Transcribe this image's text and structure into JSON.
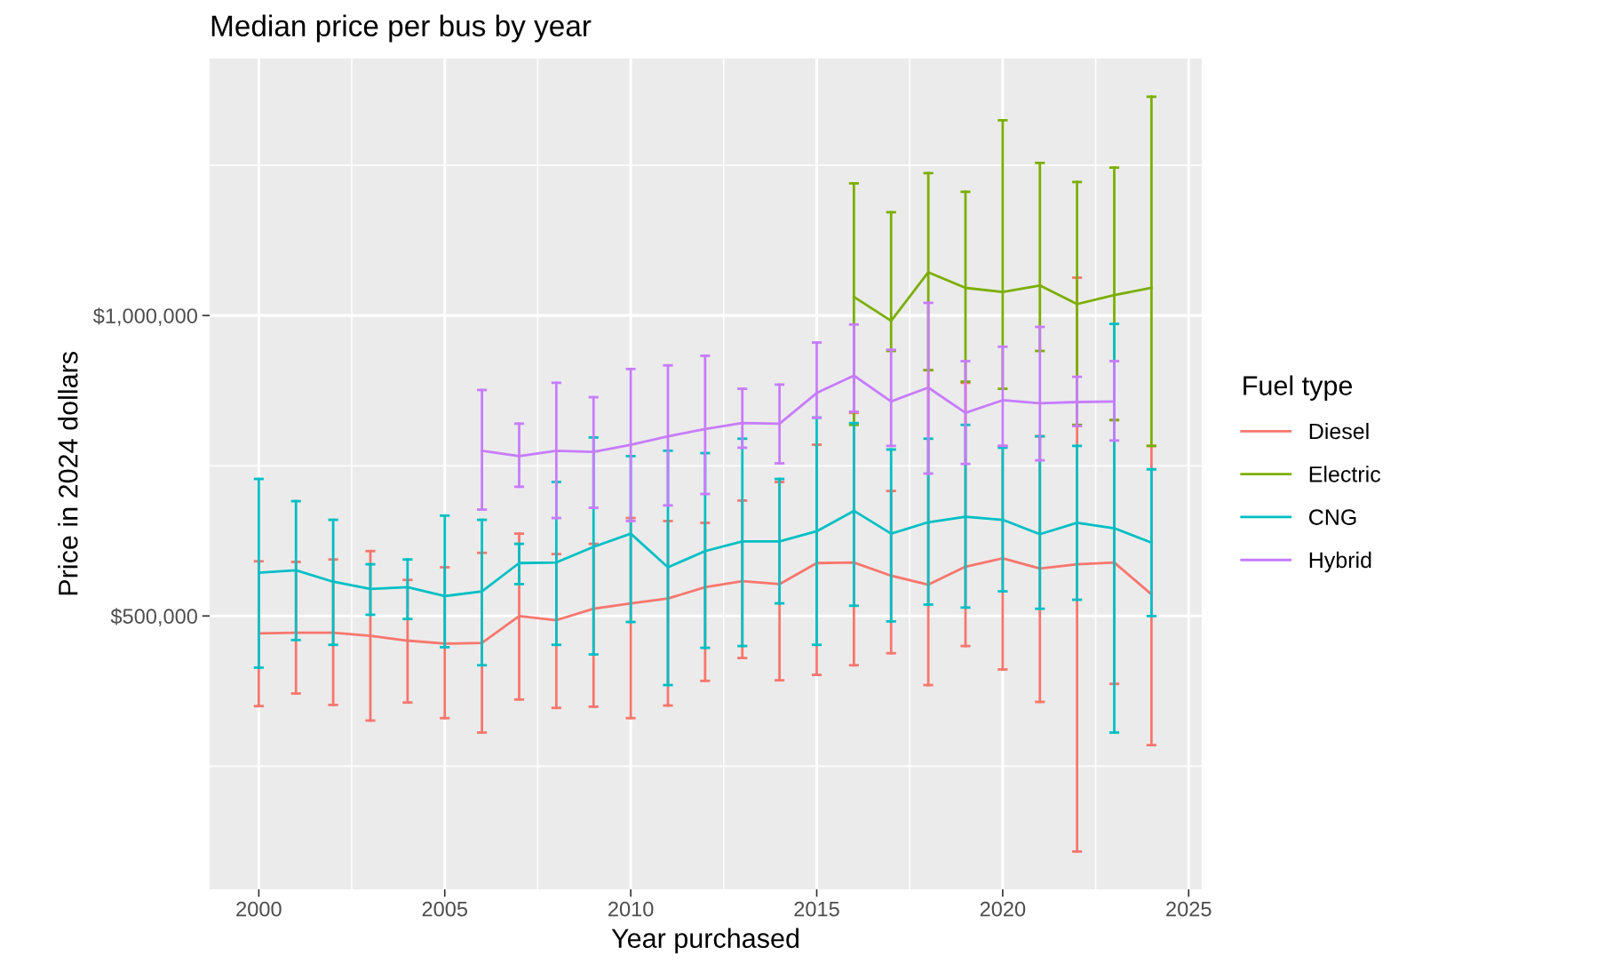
{
  "chart_data": {
    "type": "line",
    "title": "Median price per bus by year",
    "xlabel": "Year purchased",
    "ylabel": "Price in 2024 dollars",
    "legend_title": "Fuel type",
    "legend": "right",
    "grid": true,
    "xlim": [
      1998.68,
      2025.35
    ],
    "xticks": [
      {
        "value": 2000,
        "label": "2000"
      },
      {
        "value": 2002.5,
        "label": null
      },
      {
        "value": 2005,
        "label": "2005"
      },
      {
        "value": 2007.5,
        "label": null
      },
      {
        "value": 2010,
        "label": "2010"
      },
      {
        "value": 2012.5,
        "label": null
      },
      {
        "value": 2015,
        "label": "2015"
      },
      {
        "value": 2017.5,
        "label": null
      },
      {
        "value": 2020,
        "label": "2020"
      },
      {
        "value": 2022.5,
        "label": null
      },
      {
        "value": 2025,
        "label": "2025"
      }
    ],
    "ylim": [
      45000,
      1428000
    ],
    "yticks": [
      {
        "value": 250000,
        "label": null
      },
      {
        "value": 500000,
        "label": "$500,000"
      },
      {
        "value": 750000,
        "label": null
      },
      {
        "value": 1000000,
        "label": "$1,000,000"
      },
      {
        "value": 1250000,
        "label": null
      }
    ],
    "series": [
      {
        "name": "Diesel",
        "color": "#f8766d",
        "x": [
          2000,
          2001,
          2002,
          2003,
          2004,
          2005,
          2006,
          2007,
          2008,
          2009,
          2010,
          2011,
          2012,
          2013,
          2014,
          2015,
          2016,
          2017,
          2018,
          2019,
          2020,
          2021,
          2022,
          2023,
          2024
        ],
        "values": [
          471000,
          472000,
          472000,
          467000,
          459000,
          454000,
          455000,
          500000,
          493000,
          512000,
          521000,
          529000,
          548000,
          558000,
          553000,
          588000,
          589000,
          567000,
          552000,
          582000,
          596000,
          579000,
          586000,
          589000,
          536000
        ],
        "errors": [
          [
            350000,
            591000
          ],
          [
            371000,
            590000
          ],
          [
            352000,
            594000
          ],
          [
            326000,
            608000
          ],
          [
            356000,
            560000
          ],
          [
            330000,
            581000
          ],
          [
            306000,
            605000
          ],
          [
            361000,
            637000
          ],
          [
            347000,
            603000
          ],
          [
            349000,
            620000
          ],
          [
            330000,
            663000
          ],
          [
            351000,
            658000
          ],
          [
            392000,
            655000
          ],
          [
            430000,
            692000
          ],
          [
            393000,
            723000
          ],
          [
            402000,
            785000
          ],
          [
            418000,
            838000
          ],
          [
            438000,
            708000
          ],
          [
            385000,
            909000
          ],
          [
            450000,
            888000
          ],
          [
            411000,
            783000
          ],
          [
            357000,
            799000
          ],
          [
            108000,
            1063000
          ],
          [
            387000,
            826000
          ],
          [
            285000,
            783000
          ]
        ]
      },
      {
        "name": "Electric",
        "color": "#7cae00",
        "x": [
          2016,
          2017,
          2018,
          2019,
          2020,
          2021,
          2022,
          2023,
          2024
        ],
        "values": [
          1031000,
          991000,
          1072000,
          1046000,
          1039000,
          1050000,
          1019000,
          1034000,
          1046000
        ],
        "errors": [
          [
            818000,
            1220000
          ],
          [
            941000,
            1172000
          ],
          [
            909000,
            1237000
          ],
          [
            890000,
            1206000
          ],
          [
            878000,
            1325000
          ],
          [
            941000,
            1254000
          ],
          [
            818000,
            1222000
          ],
          [
            826000,
            1246000
          ],
          [
            783000,
            1364000
          ]
        ]
      },
      {
        "name": "CNG",
        "color": "#00bfc4",
        "x": [
          2000,
          2001,
          2002,
          2003,
          2004,
          2005,
          2006,
          2007,
          2008,
          2009,
          2010,
          2011,
          2012,
          2013,
          2014,
          2015,
          2016,
          2017,
          2018,
          2019,
          2020,
          2021,
          2022,
          2023,
          2024
        ],
        "values": [
          572000,
          576000,
          557000,
          545000,
          548000,
          533000,
          541000,
          588000,
          589000,
          615000,
          637000,
          581000,
          608000,
          624000,
          624000,
          641000,
          675000,
          637000,
          656000,
          665000,
          660000,
          636000,
          655000,
          646000,
          622000
        ],
        "errors": [
          [
            414000,
            728000
          ],
          [
            460000,
            691000
          ],
          [
            452000,
            660000
          ],
          [
            502000,
            586000
          ],
          [
            495000,
            594000
          ],
          [
            448000,
            667000
          ],
          [
            418000,
            660000
          ],
          [
            553000,
            620000
          ],
          [
            452000,
            723000
          ],
          [
            436000,
            797000
          ],
          [
            490000,
            766000
          ],
          [
            385000,
            775000
          ],
          [
            447000,
            771000
          ],
          [
            450000,
            795000
          ],
          [
            521000,
            728000
          ],
          [
            452000,
            830000
          ],
          [
            517000,
            821000
          ],
          [
            491000,
            777000
          ],
          [
            519000,
            795000
          ],
          [
            514000,
            818000
          ],
          [
            541000,
            780000
          ],
          [
            512000,
            799000
          ],
          [
            527000,
            783000
          ],
          [
            306000,
            986000
          ],
          [
            500000,
            744000
          ]
        ]
      },
      {
        "name": "Hybrid",
        "color": "#c77cff",
        "x": [
          2006,
          2007,
          2008,
          2009,
          2010,
          2011,
          2012,
          2013,
          2014,
          2015,
          2016,
          2017,
          2018,
          2019,
          2020,
          2021,
          2022,
          2023
        ],
        "values": [
          775000,
          766000,
          775000,
          773000,
          785000,
          799000,
          811000,
          821000,
          820000,
          871000,
          900000,
          857000,
          880000,
          838000,
          859000,
          854000,
          856000,
          857000
        ],
        "errors": [
          [
            677000,
            876000
          ],
          [
            715000,
            820000
          ],
          [
            663000,
            888000
          ],
          [
            680000,
            864000
          ],
          [
            658000,
            911000
          ],
          [
            684000,
            917000
          ],
          [
            703000,
            933000
          ],
          [
            780000,
            878000
          ],
          [
            754000,
            885000
          ],
          [
            830000,
            955000
          ],
          [
            840000,
            985000
          ],
          [
            783000,
            943000
          ],
          [
            737000,
            1021000
          ],
          [
            753000,
            924000
          ],
          [
            783000,
            948000
          ],
          [
            759000,
            981000
          ],
          [
            816000,
            898000
          ],
          [
            792000,
            924000
          ]
        ]
      }
    ]
  }
}
